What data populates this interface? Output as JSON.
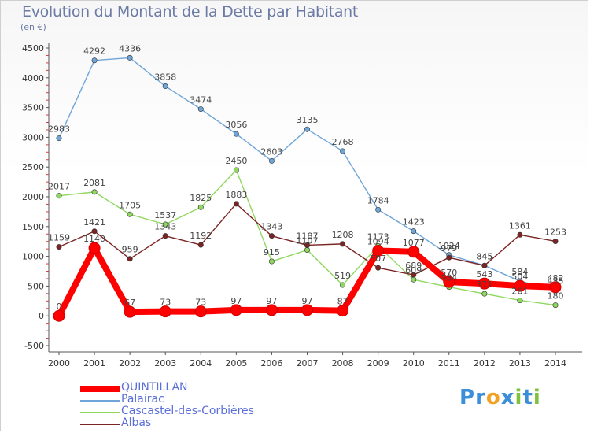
{
  "chart_data": {
    "type": "line",
    "title": "Evolution du Montant de la Dette par Habitant",
    "subtitle": "(en €)",
    "xlabel": "",
    "ylabel": "",
    "x": [
      "2000",
      "2001",
      "2002",
      "2003",
      "2004",
      "2005",
      "2006",
      "2007",
      "2008",
      "2009",
      "2010",
      "2011",
      "2012",
      "2013",
      "2014"
    ],
    "ylim": [
      -500,
      4500
    ],
    "yticks": [
      -500,
      0,
      500,
      1000,
      1500,
      2000,
      2500,
      3000,
      3500,
      4000,
      4500
    ],
    "grid": false,
    "legend": "bottom-left",
    "series": [
      {
        "name": "QUINTILLAN",
        "color": "#ff0000",
        "values": [
          0,
          1140,
          67,
          73,
          73,
          97,
          97,
          97,
          87,
          1094,
          1077,
          570,
          543,
          504,
          482
        ],
        "labels": [
          "0",
          "1140",
          "67",
          "73",
          "73",
          "97",
          "97",
          "97",
          "87",
          "1094",
          "1077",
          "570",
          "543",
          "504",
          "482"
        ]
      },
      {
        "name": "Palairac",
        "color": "#6fa5d8",
        "values": [
          2983,
          4292,
          4336,
          3858,
          3474,
          3056,
          2603,
          3135,
          2768,
          1784,
          1423,
          1024,
          845,
          584,
          435
        ],
        "labels": [
          "2983",
          "4292",
          "4336",
          "3858",
          "3474",
          "3056",
          "2603",
          "3135",
          "2768",
          "1784",
          "1423",
          "1024",
          "845",
          "584",
          "435"
        ]
      },
      {
        "name": "Cascastel-des-Corbières",
        "color": "#8fd860",
        "values": [
          2017,
          2081,
          1705,
          1537,
          1825,
          2450,
          915,
          1107,
          519,
          1173,
          609,
          484,
          371,
          261,
          180
        ],
        "labels": [
          "2017",
          "2081",
          "1705",
          "1537",
          "1825",
          "2450",
          "915",
          "1107",
          "519",
          "1173",
          "609",
          "484",
          "371",
          "261",
          "180"
        ]
      },
      {
        "name": "Albas",
        "color": "#7a2424",
        "values": [
          1159,
          1421,
          959,
          1343,
          1192,
          1883,
          1343,
          1187,
          1208,
          807,
          689,
          979,
          845,
          1361,
          1253
        ],
        "labels": [
          "1159",
          "1421",
          "959",
          "1343",
          "1192",
          "1883",
          "1343",
          "1187",
          "1208",
          "807",
          "689",
          "979",
          "845",
          "1361",
          "1253"
        ]
      }
    ]
  },
  "logo": {
    "text": "Proxiti",
    "letters": [
      {
        "ch": "P",
        "color": "#3d8ed9"
      },
      {
        "ch": "r",
        "color": "#3d8ed9"
      },
      {
        "ch": "o",
        "color": "#f2a023"
      },
      {
        "ch": "x",
        "color": "#3d8ed9"
      },
      {
        "ch": "i",
        "color": "#7ec13d"
      },
      {
        "ch": "t",
        "color": "#3d8ed9"
      },
      {
        "ch": "i",
        "color": "#7ec13d"
      }
    ]
  }
}
